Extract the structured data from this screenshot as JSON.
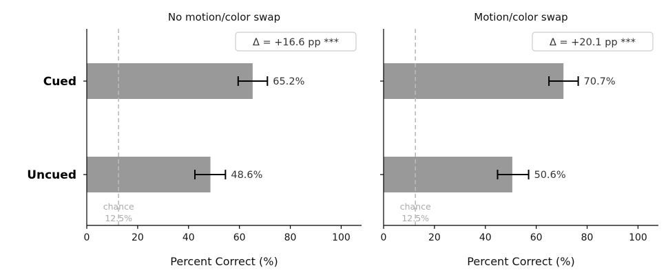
{
  "chart_data": [
    {
      "type": "bar",
      "orientation": "horizontal",
      "title": "No motion/color swap",
      "xlabel": "Percent Correct (%)",
      "xlim": [
        0,
        108
      ],
      "xticks": [
        0,
        20,
        40,
        60,
        80,
        100
      ],
      "categories": [
        "Cued",
        "Uncued"
      ],
      "values": [
        65.2,
        48.6
      ],
      "value_labels": [
        "65.2%",
        "48.6%"
      ],
      "error_low": [
        59.5,
        42.5
      ],
      "error_high": [
        71.0,
        54.5
      ],
      "bar_color": "#999999",
      "chance_value": 12.5,
      "chance_label_line1": "chance",
      "chance_label_line2": "12.5%",
      "annotation": "Δ = +16.6 pp  ***",
      "grid": false
    },
    {
      "type": "bar",
      "orientation": "horizontal",
      "title": "Motion/color swap",
      "xlabel": "Percent Correct (%)",
      "xlim": [
        0,
        108
      ],
      "xticks": [
        0,
        20,
        40,
        60,
        80,
        100
      ],
      "categories": [
        "Cued",
        "Uncued"
      ],
      "values": [
        70.7,
        50.6
      ],
      "value_labels": [
        "70.7%",
        "50.6%"
      ],
      "error_low": [
        65.0,
        44.8
      ],
      "error_high": [
        76.5,
        57.0
      ],
      "bar_color": "#999999",
      "chance_value": 12.5,
      "chance_label_line1": "chance",
      "chance_label_line2": "12.5%",
      "annotation": "Δ = +20.1 pp  ***",
      "grid": false
    }
  ]
}
